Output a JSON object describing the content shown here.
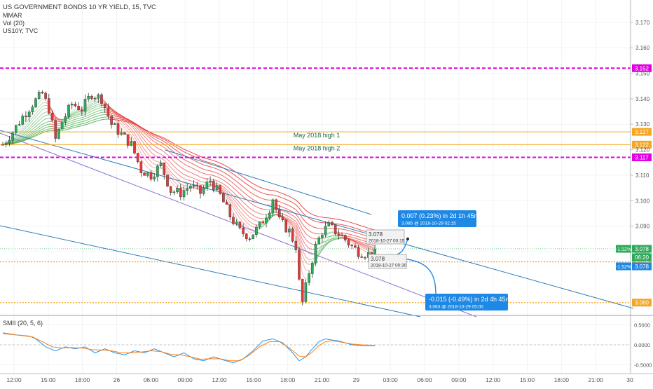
{
  "header": {
    "title": "US GOVERNMENT BONDS 10 YR YIELD, 15, TVC",
    "indicators": [
      "MMAR",
      "Vol (20)",
      "US10Y, TVC"
    ]
  },
  "colors": {
    "hline_magenta": "#e000e0",
    "hline_orange": "#f5a623",
    "channel_blue": "#2e7dbb",
    "channel_purple": "#8a6fd6",
    "candle_up": "#2eab5a",
    "candle_down": "#e53935",
    "ribbon_green": "#4caf50",
    "ribbon_red": "#e53935",
    "label_blue": "#1e88e5",
    "smii_line": "#2196f3",
    "signal_line": "#ff7f0e",
    "axis_text": "#555555"
  },
  "chart_data": [
    {
      "type": "line",
      "title": "US GOVERNMENT BONDS 10 YR YIELD, 15, TVC",
      "x_ticks": [
        "12:00",
        "15:00",
        "18:00",
        "26",
        "06:00",
        "09:00",
        "12:00",
        "15:00",
        "18:00",
        "21:00",
        "29",
        "03:00",
        "06:00",
        "09:00",
        "12:00",
        "15:00",
        "18:00",
        "21:00",
        "30"
      ],
      "y_ticks": [
        "3.170",
        "3.160",
        "3.150",
        "3.140",
        "3.130",
        "3.120",
        "3.110",
        "3.100",
        "3.090",
        "3.080"
      ],
      "ylim": [
        3.058,
        3.176
      ],
      "price_path": [
        [
          0,
          3.122
        ],
        [
          3,
          3.127
        ],
        [
          6,
          3.133
        ],
        [
          9,
          3.138
        ],
        [
          12,
          3.142
        ],
        [
          14,
          3.136
        ],
        [
          16,
          3.124
        ],
        [
          18,
          3.131
        ],
        [
          21,
          3.138
        ],
        [
          24,
          3.136
        ],
        [
          27,
          3.142
        ],
        [
          30,
          3.14
        ],
        [
          33,
          3.13
        ],
        [
          36,
          3.126
        ],
        [
          39,
          3.122
        ],
        [
          42,
          3.112
        ],
        [
          45,
          3.11
        ],
        [
          48,
          3.114
        ],
        [
          51,
          3.104
        ],
        [
          54,
          3.103
        ],
        [
          57,
          3.106
        ],
        [
          60,
          3.103
        ],
        [
          63,
          3.108
        ],
        [
          66,
          3.102
        ],
        [
          69,
          3.094
        ],
        [
          72,
          3.088
        ],
        [
          75,
          3.086
        ],
        [
          78,
          3.09
        ],
        [
          81,
          3.097
        ],
        [
          82,
          3.101
        ],
        [
          84,
          3.092
        ],
        [
          87,
          3.088
        ],
        [
          89,
          3.082
        ],
        [
          90,
          3.068
        ],
        [
          91,
          3.06
        ],
        [
          93,
          3.072
        ],
        [
          95,
          3.082
        ],
        [
          97,
          3.088
        ],
        [
          99,
          3.09
        ],
        [
          101,
          3.088
        ],
        [
          103,
          3.086
        ],
        [
          106,
          3.082
        ],
        [
          108,
          3.08
        ],
        [
          111,
          3.079
        ],
        [
          113,
          3.079
        ]
      ],
      "horizontal_lines": [
        {
          "value": 3.152,
          "label": "3.152",
          "style": "dashed",
          "color": "#e000e0"
        },
        {
          "value": 3.127,
          "label": "3.127",
          "style": "solid",
          "color": "#f5a623",
          "annotation": "May 2018 high 1"
        },
        {
          "value": 3.122,
          "label": "3.122",
          "style": "solid",
          "color": "#f5a623",
          "annotation": "May 2018 high 2"
        },
        {
          "value": 3.117,
          "label": "3.117",
          "style": "dashed",
          "color": "#e000e0"
        },
        {
          "value": 3.076,
          "label": "3.076",
          "style": "dotted",
          "color": "#f5a623"
        },
        {
          "value": 3.06,
          "label": "3.060",
          "style": "dotted",
          "color": "#f5a623"
        }
      ],
      "price_labels": [
        {
          "value": 3.078,
          "label": "3.078",
          "prefix": "-1.52%",
          "color": "#2eab5a"
        },
        {
          "value": 3.077,
          "label": "06:20",
          "color": "#2eab5a"
        },
        {
          "value": 3.073,
          "label": "3.078",
          "prefix": "-1.52%",
          "color": "#1e88e5"
        }
      ],
      "projections": [
        {
          "text": "0.007 (0.23%) in 2d 1h 45m",
          "detail": "3.085 @ 2018-10-29 02:15",
          "color": "#1e88e5"
        },
        {
          "text": "-0.015 (-0.49%) in 2d 4h 45m",
          "detail": "3.063 @ 2018-10-29 05:00",
          "color": "#1e88e5"
        }
      ],
      "point_tags": [
        {
          "price": "3.078",
          "time": "2018-10-27 00:15"
        },
        {
          "price": "3.078",
          "time": "2018-10-27 00:30"
        }
      ]
    },
    {
      "type": "line",
      "title": "SMII (20, 5, 6)",
      "y_ticks": [
        "0.5000",
        "0.0000",
        "-0.5000"
      ],
      "ylim": [
        -0.65,
        0.65
      ],
      "series": [
        {
          "name": "SMII",
          "values": [
            [
              0,
              0.3
            ],
            [
              4,
              0.25
            ],
            [
              8,
              0.22
            ],
            [
              10,
              0.15
            ],
            [
              13,
              -0.05
            ],
            [
              16,
              -0.15
            ],
            [
              19,
              -0.05
            ],
            [
              22,
              -0.1
            ],
            [
              25,
              -0.05
            ],
            [
              28,
              -0.2
            ],
            [
              31,
              -0.1
            ],
            [
              34,
              -0.2
            ],
            [
              37,
              -0.25
            ],
            [
              40,
              -0.15
            ],
            [
              43,
              -0.2
            ],
            [
              46,
              -0.1
            ],
            [
              49,
              -0.2
            ],
            [
              52,
              -0.3
            ],
            [
              55,
              -0.2
            ],
            [
              58,
              -0.35
            ],
            [
              61,
              -0.4
            ],
            [
              64,
              -0.3
            ],
            [
              67,
              -0.38
            ],
            [
              70,
              -0.45
            ],
            [
              73,
              -0.35
            ],
            [
              76,
              -0.15
            ],
            [
              79,
              0.1
            ],
            [
              82,
              0.15
            ],
            [
              85,
              0.05
            ],
            [
              88,
              -0.2
            ],
            [
              90,
              -0.4
            ],
            [
              92,
              -0.3
            ],
            [
              94,
              -0.1
            ],
            [
              96,
              0.08
            ],
            [
              98,
              0.15
            ],
            [
              100,
              0.12
            ],
            [
              102,
              0.1
            ],
            [
              104,
              0.05
            ],
            [
              106,
              0.0
            ],
            [
              109,
              -0.02
            ],
            [
              113,
              -0.02
            ]
          ]
        },
        {
          "name": "Signal",
          "values": [
            [
              0,
              0.28
            ],
            [
              5,
              0.24
            ],
            [
              9,
              0.2
            ],
            [
              12,
              0.08
            ],
            [
              15,
              -0.05
            ],
            [
              18,
              -0.08
            ],
            [
              21,
              -0.07
            ],
            [
              24,
              -0.08
            ],
            [
              27,
              -0.12
            ],
            [
              30,
              -0.13
            ],
            [
              33,
              -0.15
            ],
            [
              36,
              -0.2
            ],
            [
              39,
              -0.2
            ],
            [
              42,
              -0.18
            ],
            [
              45,
              -0.15
            ],
            [
              48,
              -0.17
            ],
            [
              51,
              -0.24
            ],
            [
              54,
              -0.25
            ],
            [
              57,
              -0.3
            ],
            [
              60,
              -0.36
            ],
            [
              63,
              -0.35
            ],
            [
              66,
              -0.35
            ],
            [
              69,
              -0.4
            ],
            [
              72,
              -0.4
            ],
            [
              75,
              -0.25
            ],
            [
              78,
              -0.05
            ],
            [
              81,
              0.08
            ],
            [
              84,
              0.08
            ],
            [
              87,
              -0.08
            ],
            [
              90,
              -0.28
            ],
            [
              92,
              -0.3
            ],
            [
              94,
              -0.18
            ],
            [
              96,
              -0.02
            ],
            [
              98,
              0.08
            ],
            [
              100,
              0.1
            ],
            [
              102,
              0.08
            ],
            [
              104,
              0.05
            ],
            [
              106,
              0.02
            ],
            [
              109,
              0.0
            ],
            [
              113,
              -0.01
            ]
          ]
        }
      ]
    }
  ]
}
